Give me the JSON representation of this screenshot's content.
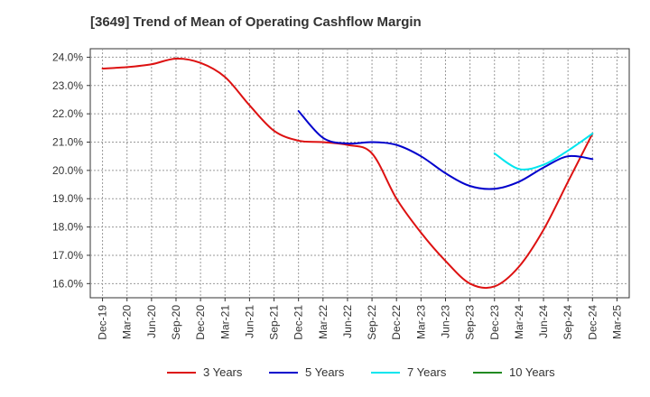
{
  "chart_data": {
    "type": "line",
    "title": "[3649]  Trend of Mean of Operating Cashflow Margin",
    "xlabel": "",
    "ylabel": "",
    "x_ticks": [
      "Dec-19",
      "Mar-20",
      "Jun-20",
      "Sep-20",
      "Dec-20",
      "Mar-21",
      "Jun-21",
      "Sep-21",
      "Dec-21",
      "Mar-22",
      "Jun-22",
      "Sep-22",
      "Dec-22",
      "Mar-23",
      "Jun-23",
      "Sep-23",
      "Dec-23",
      "Mar-24",
      "Jun-24",
      "Sep-24",
      "Dec-24",
      "Mar-25"
    ],
    "y_ticks": [
      "16.0%",
      "17.0%",
      "18.0%",
      "19.0%",
      "20.0%",
      "21.0%",
      "22.0%",
      "23.0%",
      "24.0%"
    ],
    "ylim": [
      15.5,
      24.3
    ],
    "grid": true,
    "legend_position": "bottom",
    "series": [
      {
        "name": "3 Years",
        "color": "#dd1111",
        "x": [
          "Dec-19",
          "Mar-20",
          "Jun-20",
          "Sep-20",
          "Dec-20",
          "Mar-21",
          "Jun-21",
          "Sep-21",
          "Dec-21",
          "Mar-22",
          "Jun-22",
          "Sep-22",
          "Dec-22",
          "Mar-23",
          "Jun-23",
          "Sep-23",
          "Dec-23",
          "Mar-24",
          "Jun-24",
          "Sep-24",
          "Dec-24"
        ],
        "values": [
          23.6,
          23.65,
          23.75,
          23.95,
          23.8,
          23.3,
          22.3,
          21.4,
          21.05,
          21.0,
          20.9,
          20.6,
          19.0,
          17.8,
          16.8,
          16.0,
          15.9,
          16.6,
          17.9,
          19.6,
          21.3
        ]
      },
      {
        "name": "5 Years",
        "color": "#0000cc",
        "x": [
          "Dec-21",
          "Mar-22",
          "Jun-22",
          "Sep-22",
          "Dec-22",
          "Mar-23",
          "Jun-23",
          "Sep-23",
          "Dec-23",
          "Mar-24",
          "Jun-24",
          "Sep-24",
          "Dec-24"
        ],
        "values": [
          22.1,
          21.15,
          20.95,
          21.0,
          20.9,
          20.5,
          19.9,
          19.45,
          19.35,
          19.6,
          20.1,
          20.5,
          20.4
        ]
      },
      {
        "name": "7 Years",
        "color": "#00e5ee",
        "x": [
          "Dec-23",
          "Mar-24",
          "Jun-24",
          "Sep-24",
          "Dec-24"
        ],
        "values": [
          20.6,
          20.05,
          20.2,
          20.7,
          21.3
        ]
      },
      {
        "name": "10 Years",
        "color": "#228b22",
        "x": [],
        "values": []
      }
    ]
  }
}
